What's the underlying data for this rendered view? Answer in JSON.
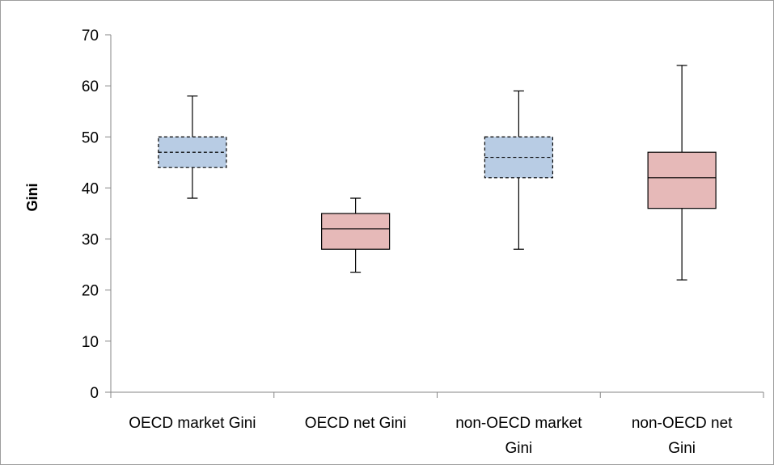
{
  "chart_data": {
    "type": "box",
    "title": "",
    "xlabel": "",
    "ylabel": "Gini",
    "ylim": [
      0,
      70
    ],
    "yticks": [
      0,
      10,
      20,
      30,
      40,
      50,
      60,
      70
    ],
    "grid": false,
    "legend": "none",
    "categories": [
      [
        "OECD market Gini"
      ],
      [
        "OECD net Gini"
      ],
      [
        "non-OECD market",
        "Gini"
      ],
      [
        "non-OECD net",
        "Gini"
      ]
    ],
    "boxes": [
      {
        "min": 38,
        "q1": 44,
        "median": 47,
        "q3": 50,
        "max": 58,
        "fill": "#b8cce4",
        "border": "dashed"
      },
      {
        "min": 23.5,
        "q1": 28,
        "median": 32,
        "q3": 35,
        "max": 38,
        "fill": "#e6b9b8",
        "border": "solid"
      },
      {
        "min": 28,
        "q1": 42,
        "median": 46,
        "q3": 50,
        "max": 59,
        "fill": "#b8cce4",
        "border": "dashed"
      },
      {
        "min": 22,
        "q1": 36,
        "median": 42,
        "q3": 47,
        "max": 64,
        "fill": "#e6b9b8",
        "border": "solid"
      }
    ]
  }
}
